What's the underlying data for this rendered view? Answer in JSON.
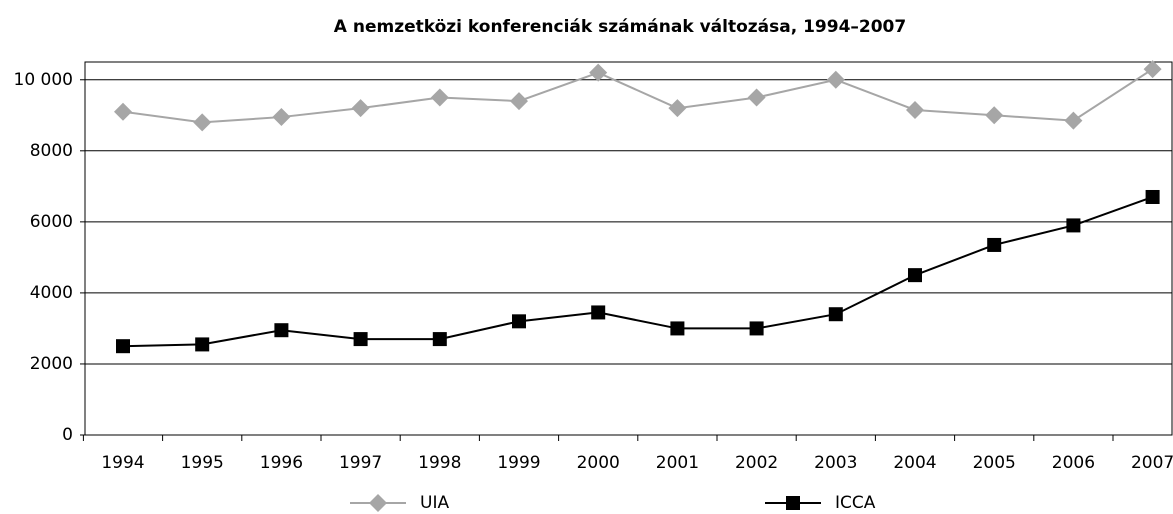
{
  "chart_data": {
    "type": "line",
    "title": "A nemzetközi konferenciák számának változása, 1994–2007",
    "categories": [
      "1994",
      "1995",
      "1996",
      "1997",
      "1998",
      "1999",
      "2000",
      "2001",
      "2002",
      "2003",
      "2004",
      "2005",
      "2006",
      "2007"
    ],
    "series": [
      {
        "name": "UIA",
        "color": "#a6a6a6",
        "marker": "diamond",
        "values": [
          9100,
          8800,
          8950,
          9200,
          9500,
          9400,
          10200,
          9200,
          9500,
          10000,
          9150,
          9000,
          8850,
          10300
        ]
      },
      {
        "name": "ICCA",
        "color": "#000000",
        "marker": "square",
        "values": [
          2500,
          2550,
          2950,
          2700,
          2700,
          3200,
          3450,
          3000,
          3000,
          3400,
          4500,
          5350,
          5900,
          6700
        ]
      }
    ],
    "ylim": [
      0,
      10500
    ],
    "yticks": [
      0,
      2000,
      4000,
      6000,
      8000,
      {
        "value": 10000,
        "label": "10 000"
      }
    ],
    "grid": true,
    "legend": "bottom"
  }
}
